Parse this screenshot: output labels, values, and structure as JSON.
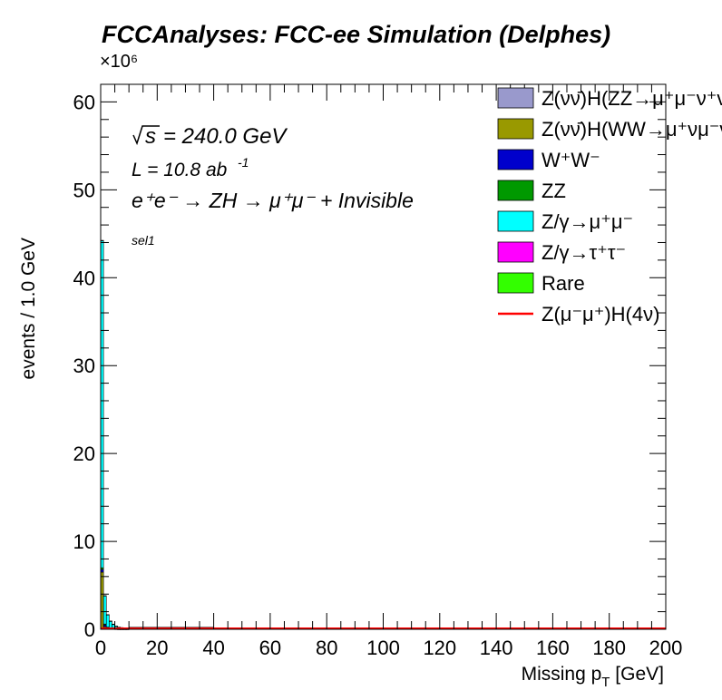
{
  "chart_data": {
    "type": "bar",
    "title": "FCCAnalyses: FCC-ee Simulation (Delphes)",
    "xlabel": "Missing p_T [GeV]",
    "ylabel": "events / 1.0 GeV",
    "y_exponent_label": "×10⁶",
    "xlim": [
      0,
      200
    ],
    "ylim": [
      0,
      62
    ],
    "y_unit_multiplier": 1000000,
    "x_ticks": [
      0,
      20,
      40,
      60,
      80,
      100,
      120,
      140,
      160,
      180,
      200
    ],
    "y_ticks": [
      0,
      10,
      20,
      30,
      40,
      50,
      60
    ],
    "stacked": true,
    "bin_width": 1.0,
    "annotations": {
      "sqrt_s": "= 240.0 GeV",
      "luminosity": "L = 10.8 ab",
      "luminosity_exp": "-1",
      "process": "e⁺e⁻ → ZH → μ⁺μ⁻ + Invisible",
      "selection": "sel1"
    },
    "series": [
      {
        "name": "Z(νν̄)H(ZZ→μ⁺μ⁻ν⁺ν⁻)",
        "color": "#9999cc",
        "style": "fill",
        "values": [
          0,
          0,
          0,
          0,
          0,
          0,
          0,
          0,
          0,
          0
        ]
      },
      {
        "name": "Z(νν̄)H(WW→μ⁺νμ⁻ν)",
        "color": "#999900",
        "style": "fill",
        "values": [
          6.5,
          0.3,
          0.1,
          0.05,
          0.03,
          0.02,
          0.01,
          0.01,
          0.01,
          0.01
        ]
      },
      {
        "name": "W⁺W⁻",
        "color": "#0000cc",
        "style": "fill",
        "values": [
          0.3,
          0.2,
          0.1,
          0.05,
          0.03,
          0.02,
          0.01,
          0.01,
          0.01,
          0.01
        ]
      },
      {
        "name": "ZZ",
        "color": "#009900",
        "style": "fill",
        "values": [
          0.2,
          0.1,
          0.05,
          0.03,
          0.02,
          0.01,
          0.01,
          0.01,
          0.01,
          0.01
        ]
      },
      {
        "name": "Z/γ→μ⁺μ⁻",
        "color": "#00ffff",
        "style": "fill",
        "values": [
          37.2,
          3.2,
          1.4,
          0.8,
          0.5,
          0.3,
          0.2,
          0.15,
          0.1,
          0.1
        ]
      },
      {
        "name": "Z/γ→τ⁺τ⁻",
        "color": "#ff00ff",
        "style": "fill",
        "values": [
          0.05,
          0.03,
          0.02,
          0.01,
          0.01,
          0.01,
          0.01,
          0.01,
          0.01,
          0.01
        ]
      },
      {
        "name": "Rare",
        "color": "#33ff00",
        "style": "fill",
        "values": [
          0,
          0,
          0,
          0,
          0,
          0,
          0,
          0,
          0,
          0
        ]
      },
      {
        "name": "Z(μ⁻μ⁺)H(4ν)",
        "color": "#ff0000",
        "style": "line",
        "values": [
          0,
          0,
          0,
          0,
          0,
          0,
          0,
          0,
          0,
          0
        ]
      }
    ],
    "tail": {
      "x_start": 10,
      "x_end": 40,
      "value": 0.2
    },
    "legend_position": "top-right"
  }
}
